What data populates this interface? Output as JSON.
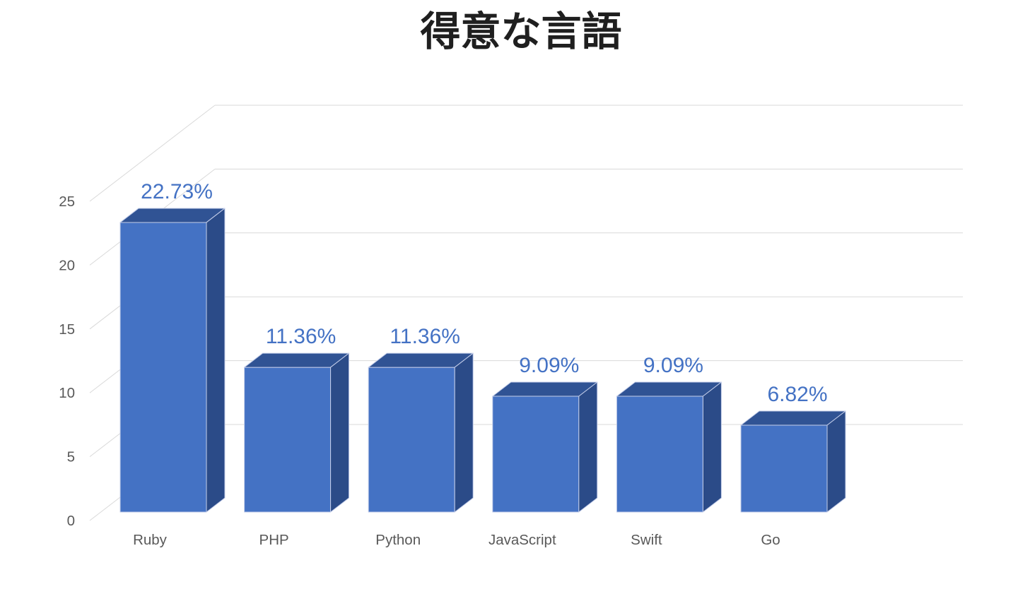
{
  "title": "得意な言語",
  "chart_data": {
    "type": "bar",
    "style": "3d-clustered-column",
    "title": "得意な言語",
    "categories": [
      "Ruby",
      "PHP",
      "Python",
      "JavaScript",
      "Swift",
      "Go"
    ],
    "values": [
      22.73,
      11.36,
      11.36,
      9.09,
      9.09,
      6.82
    ],
    "data_labels": [
      "22.73%",
      "11.36%",
      "11.36%",
      "9.09%",
      "9.09%",
      "6.82%"
    ],
    "xlabel": "",
    "ylabel": "",
    "y_ticks": [
      0,
      5,
      10,
      15,
      20,
      25
    ],
    "ylim": [
      0,
      25
    ],
    "grid": true,
    "legend": false,
    "colors": {
      "bar_front": "#4472C4",
      "bar_top": "#305394",
      "bar_side": "#2B4B88",
      "bar_edge": "#C3CDE9",
      "data_label": "#4472C4",
      "axis_label": "#595959",
      "gridline": "#D9D9D9",
      "title": "#1F1F1F",
      "background": "#FFFFFF"
    }
  }
}
